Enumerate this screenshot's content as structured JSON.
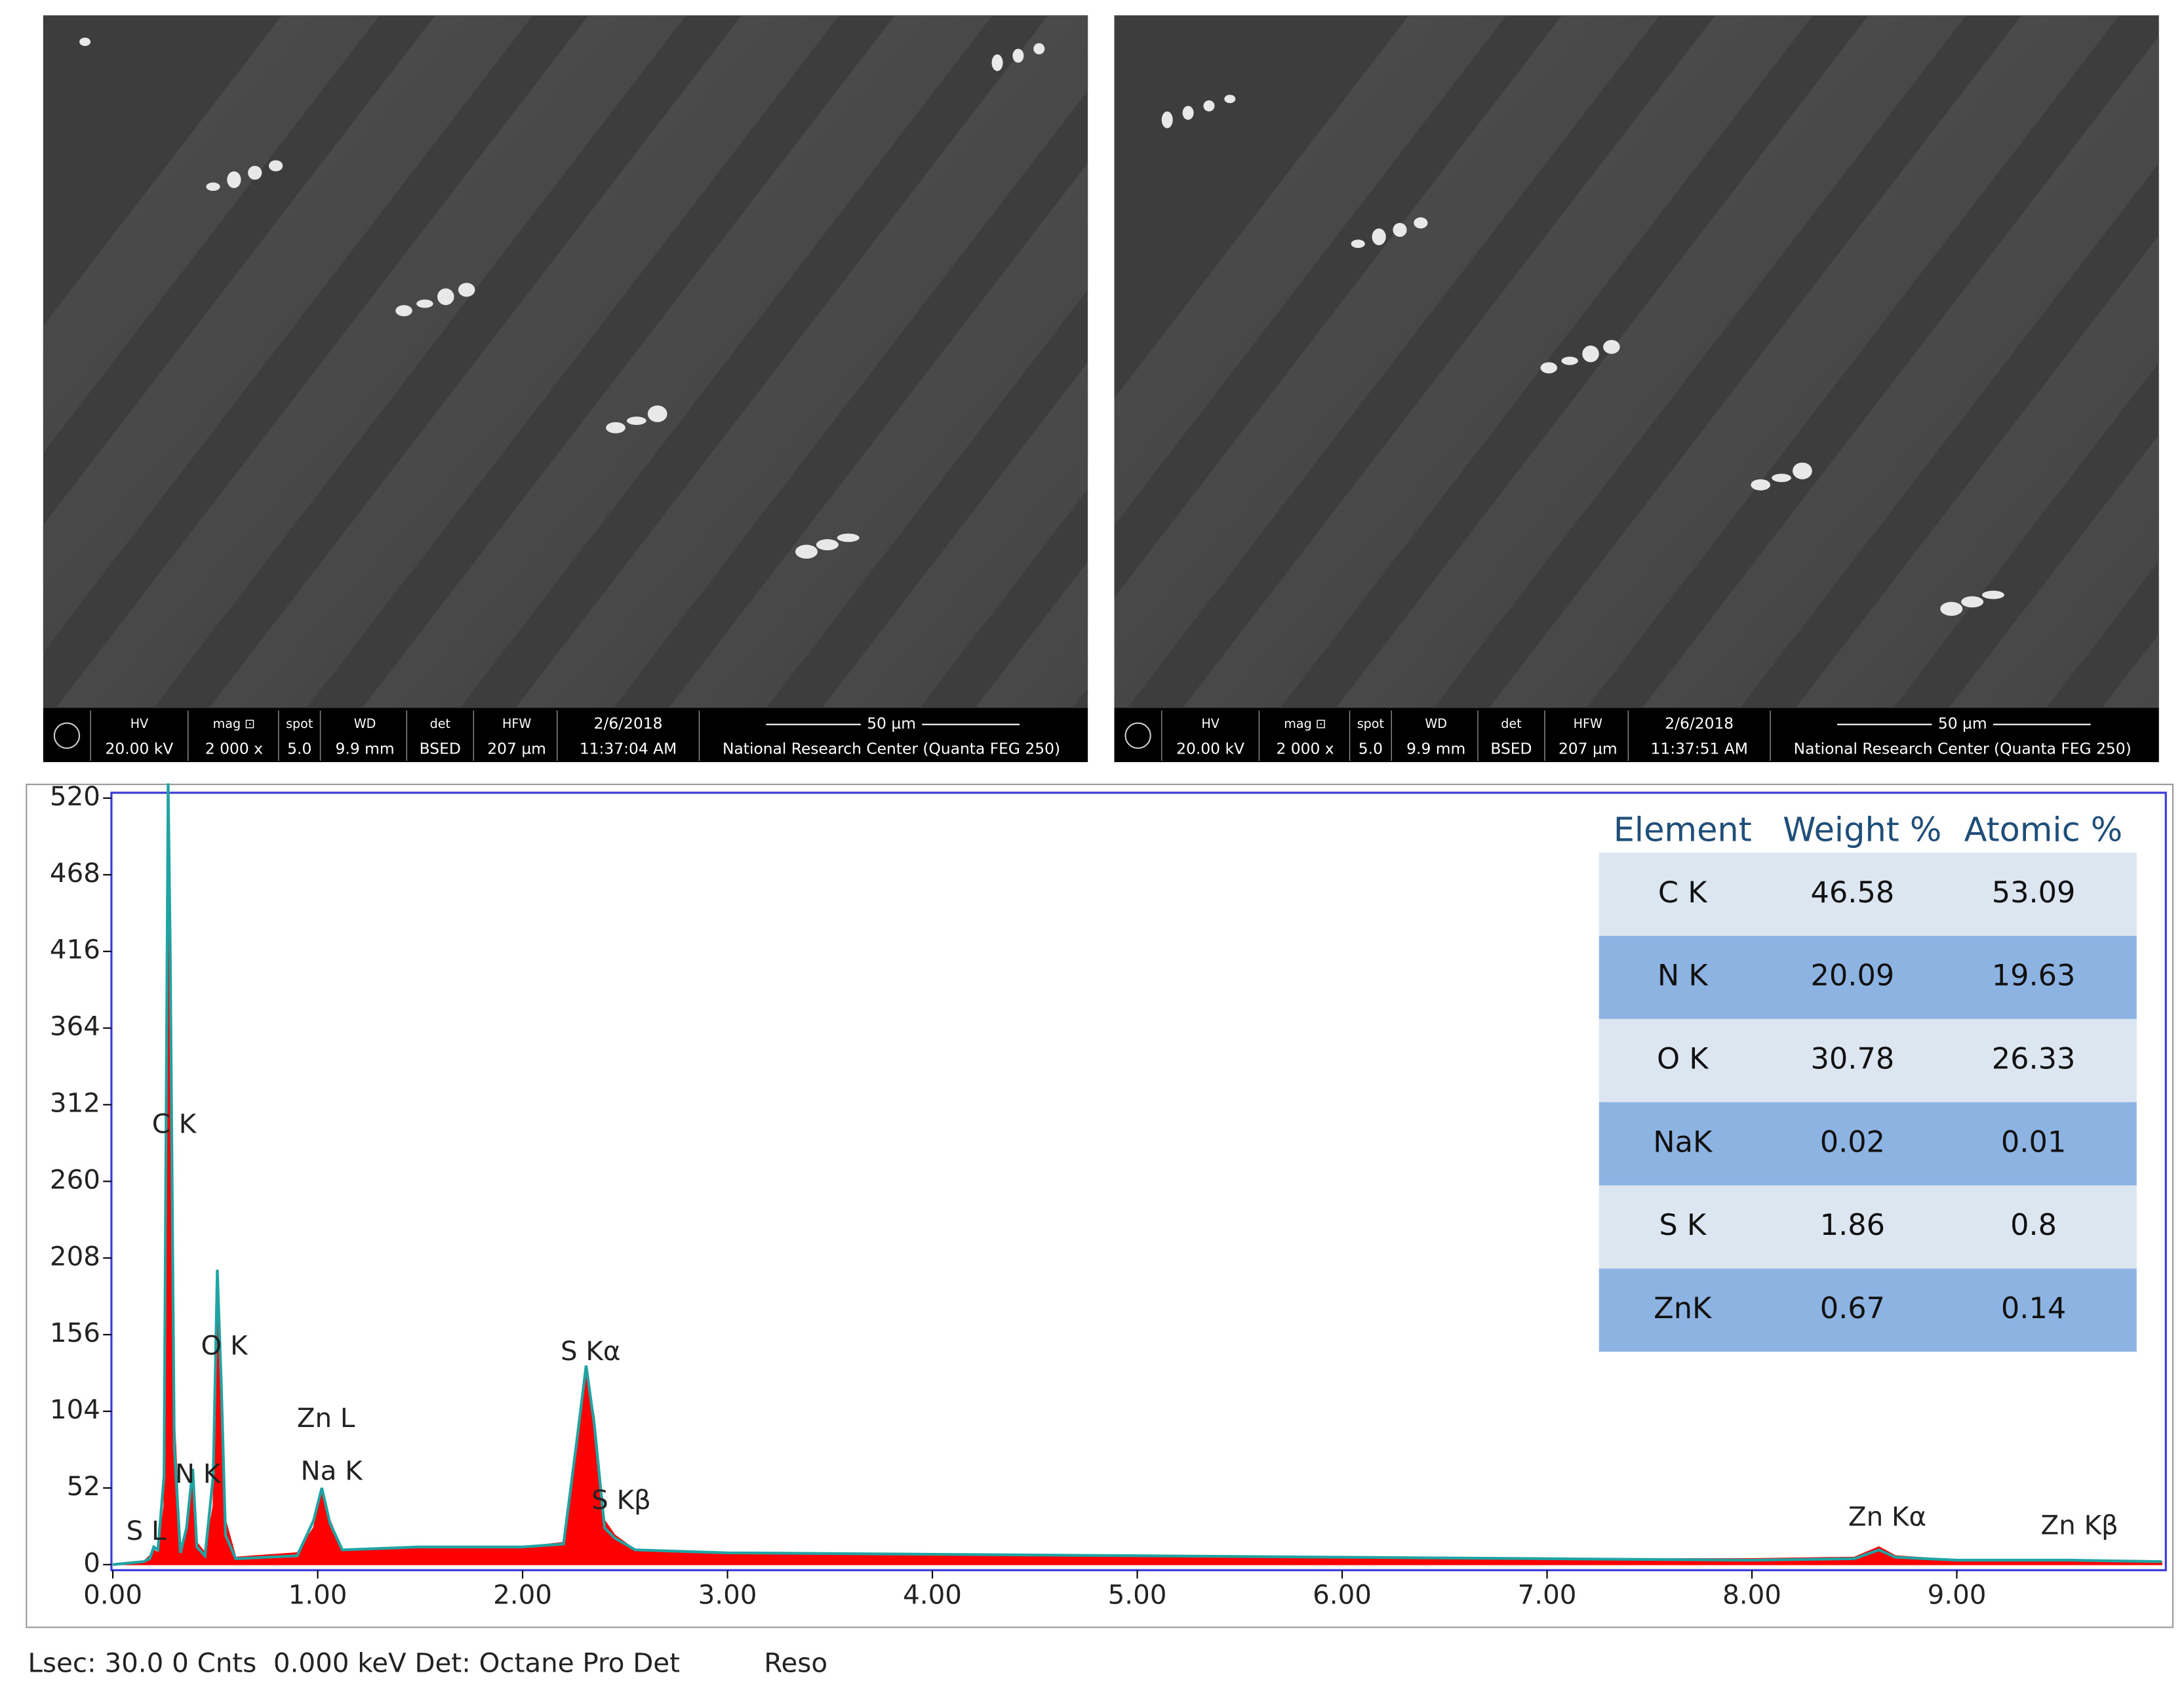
{
  "sem_panels": [
    {
      "labels": [
        "HV",
        "mag ⊡",
        "spot",
        "WD",
        "det",
        "HFW",
        "2/6/2018"
      ],
      "values": [
        "20.00 kV",
        "2 000 x",
        "5.0",
        "9.9 mm",
        "BSED",
        "207 µm",
        "11:37:04 AM"
      ],
      "scale": "50 µm",
      "footer": "National Research Center (Quanta FEG 250)"
    },
    {
      "labels": [
        "HV",
        "mag ⊡",
        "spot",
        "WD",
        "det",
        "HFW",
        "2/6/2018"
      ],
      "values": [
        "20.00 kV",
        "2 000 x",
        "5.0",
        "9.9 mm",
        "BSED",
        "207 µm",
        "11:37:51 AM"
      ],
      "scale": "50 µm",
      "footer": "National Research Center (Quanta FEG 250)"
    }
  ],
  "chart_data": {
    "type": "line",
    "x": [
      0,
      0.15,
      0.18,
      0.2,
      0.22,
      0.25,
      0.26,
      0.27,
      0.28,
      0.3,
      0.33,
      0.36,
      0.39,
      0.41,
      0.45,
      0.49,
      0.51,
      0.53,
      0.55,
      0.6,
      0.9,
      0.98,
      1.02,
      1.06,
      1.12,
      1.5,
      2.0,
      2.2,
      2.27,
      2.31,
      2.35,
      2.4,
      2.45,
      2.55,
      3.0,
      4.0,
      5.0,
      6.0,
      7.0,
      8.0,
      8.5,
      8.62,
      8.7,
      9.0,
      9.55,
      10.0
    ],
    "series": [
      {
        "color": "#ff0000",
        "values": [
          0,
          2,
          6,
          10,
          8,
          40,
          200,
          520,
          430,
          100,
          10,
          20,
          60,
          15,
          8,
          40,
          180,
          130,
          30,
          5,
          8,
          25,
          50,
          30,
          10,
          12,
          12,
          15,
          80,
          130,
          100,
          30,
          20,
          10,
          8,
          7,
          6,
          5,
          4,
          4,
          5,
          12,
          6,
          3,
          3,
          2
        ]
      },
      {
        "color": "#1fa3a3",
        "values": [
          0,
          2,
          4,
          12,
          10,
          60,
          300,
          530,
          420,
          80,
          8,
          25,
          65,
          12,
          6,
          60,
          200,
          120,
          20,
          4,
          6,
          30,
          52,
          28,
          10,
          12,
          12,
          14,
          90,
          135,
          95,
          25,
          18,
          10,
          8,
          7,
          6,
          5,
          4,
          3,
          4,
          10,
          5,
          3,
          3,
          2
        ]
      }
    ],
    "xlim": [
      0,
      10.02
    ],
    "ylim": [
      0,
      524
    ],
    "xticks": [
      {
        "value": 0,
        "label": "0.00"
      },
      {
        "value": 1,
        "label": "1.00"
      },
      {
        "value": 2,
        "label": "2.00"
      },
      {
        "value": 3,
        "label": "3.00"
      },
      {
        "value": 4,
        "label": "4.00"
      },
      {
        "value": 5,
        "label": "5.00"
      },
      {
        "value": 6,
        "label": "6.00"
      },
      {
        "value": 7,
        "label": "7.00"
      },
      {
        "value": 8,
        "label": "8.00"
      },
      {
        "value": 9,
        "label": "9.00"
      }
    ],
    "yticks": [
      0,
      52,
      104,
      156,
      208,
      260,
      312,
      364,
      416,
      468,
      520
    ],
    "annotations": [
      "C K",
      "O K",
      "Zn L",
      "Na K",
      "N K",
      "S L",
      "S Kα",
      "S Kβ",
      "Zn Kα",
      "Zn Kβ"
    ],
    "table": {
      "header": [
        "Element",
        "Weight %",
        "Atomic %"
      ],
      "rows": [
        [
          "C K",
          "46.58",
          "53.09"
        ],
        [
          "N K",
          "20.09",
          "19.63"
        ],
        [
          "O K",
          "30.78",
          "26.33"
        ],
        [
          "NaK",
          "0.02",
          "0.01"
        ],
        [
          "S K",
          "1.86",
          "0.8"
        ],
        [
          "ZnK",
          "0.67",
          "0.14"
        ]
      ]
    },
    "footer": "Lsec: 30.0 0 Cnts  0.000 keV Det: Octane Pro Det          Reso"
  }
}
